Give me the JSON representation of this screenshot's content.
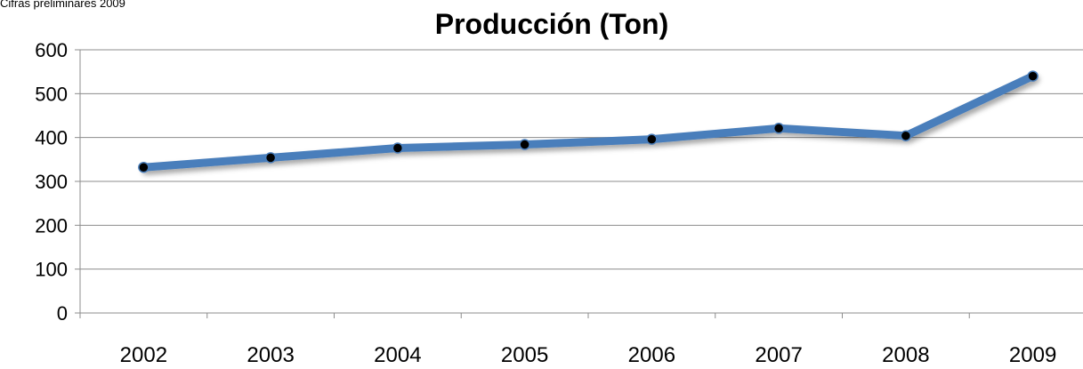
{
  "chart_data": {
    "type": "line",
    "title": "Producción (Ton)",
    "note": "Cifras preliminares 2009",
    "categories": [
      "2002",
      "2003",
      "2004",
      "2005",
      "2006",
      "2007",
      "2008",
      "2009"
    ],
    "series": [
      {
        "values": [
          332,
          354,
          376,
          384,
          396,
          421,
          404,
          540
        ]
      }
    ],
    "ylim": [
      0,
      600
    ],
    "yticks": [
      0,
      100,
      200,
      300,
      400,
      500,
      600
    ],
    "grid": true,
    "line_color": "#4a7ebb",
    "marker_color": "#000000"
  }
}
